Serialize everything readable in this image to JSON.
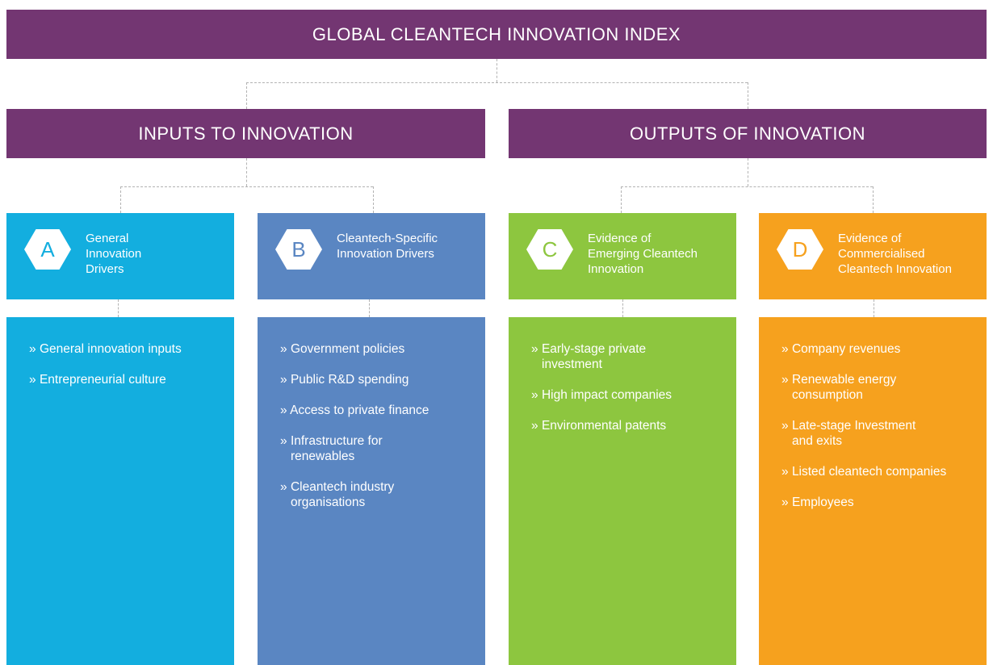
{
  "title": "GLOBAL CLEANTECH INNOVATION INDEX",
  "groups": {
    "inputs": "INPUTS TO INNOVATION",
    "outputs": "OUTPUTS OF INNOVATION"
  },
  "pillars": [
    {
      "letter": "A",
      "title": "General\nInnovation\nDrivers",
      "color": "#13aedf",
      "items": [
        "General innovation inputs",
        "Entrepreneurial culture"
      ]
    },
    {
      "letter": "B",
      "title": "Cleantech-Specific\nInnovation Drivers",
      "color": "#5a86c2",
      "items": [
        "Government policies",
        "Public R&D spending",
        "Access to private finance",
        "Infrastructure for renewables",
        "Cleantech industry organisations"
      ]
    },
    {
      "letter": "C",
      "title": "Evidence of\nEmerging Cleantech\nInnovation",
      "color": "#8dc63f",
      "items": [
        "Early-stage private investment",
        "High impact companies",
        "Environmental patents"
      ]
    },
    {
      "letter": "D",
      "title": "Evidence of\nCommercialised\nCleantech Innovation",
      "color": "#f6a11e",
      "items": [
        "Company revenues",
        "Renewable energy consumption",
        "Late-stage Investment and exits",
        "Listed cleantech companies",
        "Employees"
      ]
    }
  ],
  "colors": {
    "bar": "#733672",
    "connector": "#b3b3b3"
  }
}
